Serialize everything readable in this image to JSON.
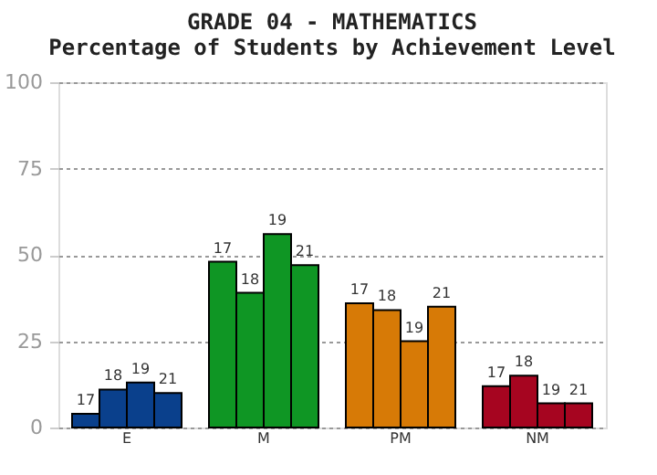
{
  "chart_data": {
    "type": "bar",
    "title": [
      "GRADE 04 - MATHEMATICS",
      "Percentage of Students by Achievement Level"
    ],
    "categories": [
      "E",
      "M",
      "PM",
      "NM"
    ],
    "series": [
      {
        "name": "17",
        "colors": [
          "#0a408c",
          "#0f9624",
          "#d77a06",
          "#a60520"
        ],
        "values": [
          4,
          48,
          36,
          12
        ]
      },
      {
        "name": "18",
        "colors": [
          "#0a408c",
          "#0f9624",
          "#d77a06",
          "#a60520"
        ],
        "values": [
          11,
          39,
          34,
          15
        ]
      },
      {
        "name": "19",
        "colors": [
          "#0a408c",
          "#0f9624",
          "#d77a06",
          "#a60520"
        ],
        "values": [
          13,
          56,
          25,
          7
        ]
      },
      {
        "name": "21",
        "colors": [
          "#0a408c",
          "#0f9624",
          "#d77a06",
          "#a60520"
        ],
        "values": [
          10,
          47,
          35,
          7
        ]
      }
    ],
    "ylim": [
      0,
      100
    ],
    "yticks": [
      0,
      25,
      50,
      75,
      100
    ],
    "grid": "y"
  }
}
